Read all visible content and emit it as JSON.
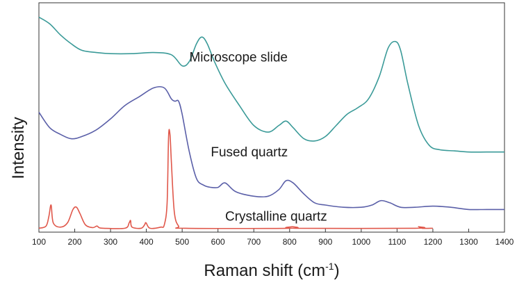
{
  "chart_data": {
    "type": "line",
    "title": "",
    "xlabel": "Raman shift (cm",
    "xlabel_superscript": "-1",
    "xlabel_suffix": ")",
    "ylabel": "Intensity",
    "xlim": [
      100,
      1400
    ],
    "ylim": [
      0,
      100
    ],
    "grid": false,
    "x_ticks": [
      100,
      200,
      300,
      400,
      500,
      600,
      700,
      800,
      900,
      1000,
      1100,
      1200,
      1300,
      1400
    ],
    "y_ticks_shown": false,
    "series": [
      {
        "name": "Microscope slide",
        "color": "#3a9a98",
        "x": [
          100,
          130,
          160,
          190,
          220,
          260,
          300,
          360,
          420,
          470,
          500,
          520,
          540,
          555,
          570,
          590,
          620,
          660,
          700,
          740,
          770,
          790,
          810,
          840,
          870,
          900,
          930,
          960,
          990,
          1020,
          1050,
          1075,
          1095,
          1110,
          1130,
          1160,
          1190,
          1220,
          1260,
          1300,
          1350,
          1400
        ],
        "y": [
          96,
          93,
          88,
          84,
          81,
          80,
          79.5,
          79.5,
          80,
          79,
          74,
          76,
          84,
          87,
          84,
          76,
          66,
          56,
          47,
          44,
          47,
          49,
          46,
          41,
          40,
          42,
          47,
          52,
          55,
          59,
          69,
          82,
          85,
          81,
          66,
          47,
          38,
          36,
          35.5,
          35,
          35,
          35
        ]
      },
      {
        "name": "Fused quartz",
        "color": "#5a5fa8",
        "x": [
          100,
          130,
          160,
          190,
          220,
          260,
          300,
          340,
          380,
          420,
          450,
          470,
          480,
          490,
          500,
          520,
          540,
          560,
          580,
          600,
          620,
          650,
          700,
          740,
          770,
          790,
          810,
          840,
          870,
          900,
          950,
          1000,
          1030,
          1055,
          1080,
          1110,
          1150,
          1200,
          1250,
          1300,
          1350,
          1400
        ],
        "y": [
          53,
          46,
          43,
          41,
          42,
          45,
          50,
          56,
          60,
          64,
          64,
          59,
          58,
          58,
          52,
          35,
          23,
          20,
          19,
          19,
          21,
          17,
          15,
          15,
          18,
          22,
          21,
          16,
          12,
          11,
          10,
          10,
          11,
          13,
          12,
          10,
          10,
          10.5,
          10,
          9,
          9,
          9
        ]
      },
      {
        "name": "Crystalline quartz",
        "color": "#e0574a",
        "x": [
          100,
          120,
          128,
          134,
          140,
          160,
          180,
          195,
          205,
          215,
          230,
          250,
          262,
          268,
          280,
          340,
          352,
          356,
          360,
          385,
          395,
          399,
          410,
          440,
          450,
          458,
          462,
          466,
          470,
          478,
          490,
          510,
          800,
          808,
          816,
          1150,
          1160,
          1170,
          1200
        ],
        "y": [
          0.5,
          1.5,
          6,
          11,
          3,
          1,
          3,
          9,
          10,
          7,
          2,
          0.8,
          1.5,
          0.8,
          0.5,
          0.5,
          3,
          4,
          1,
          0.5,
          2,
          3,
          0.5,
          1,
          2,
          12,
          42,
          43,
          30,
          8,
          1.5,
          0.5,
          0.5,
          1.2,
          0.5,
          0.5,
          1.2,
          0.5,
          0.5
        ]
      }
    ],
    "annotations": [
      {
        "text": "Microscope slide",
        "x": 520,
        "y": 76
      },
      {
        "text": "Fused quartz",
        "x": 580,
        "y": 33
      },
      {
        "text": "Crystalline quartz",
        "x": 620,
        "y": 4
      }
    ]
  }
}
